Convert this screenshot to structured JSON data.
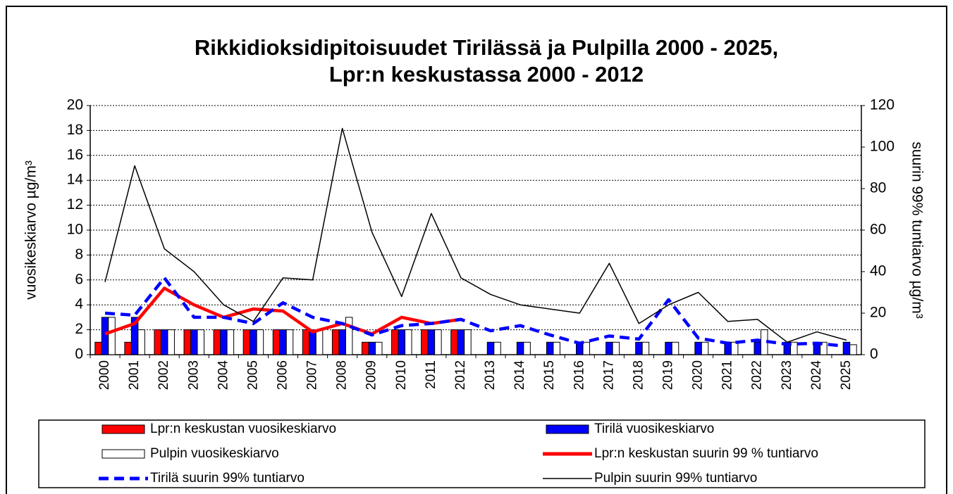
{
  "chart_data": {
    "type": "combo",
    "title": [
      "Rikkidioksidipitoisuudet Tirilässä ja Pulpilla 2000 - 2025,",
      "Lpr:n keskustassa 2000 - 2012"
    ],
    "y_label": "vuosikeskiarvo µg/m³",
    "y2_label": "suurin 99% tuntiarvo µg/m³",
    "categories": [
      "2000",
      "2001",
      "2002",
      "2003",
      "2004",
      "2005",
      "2006",
      "2007",
      "2008",
      "2009",
      "2010",
      "2011",
      "2012",
      "2013",
      "2014",
      "2015",
      "2016",
      "2017",
      "2018",
      "2019",
      "2020",
      "2021",
      "2022",
      "2023",
      "2024",
      "2025"
    ],
    "ylim": [
      0,
      20
    ],
    "yticks": [
      0,
      2,
      4,
      6,
      8,
      10,
      12,
      14,
      16,
      18,
      20
    ],
    "y2lim": [
      0,
      120
    ],
    "y2ticks": [
      0,
      20,
      40,
      60,
      80,
      100,
      120
    ],
    "grid": true,
    "series": [
      {
        "name": "Lpr:n keskustan vuosikeskiarvo",
        "type": "bar",
        "color": "#ff0000",
        "values": [
          1,
          1,
          2,
          2,
          2,
          2,
          2,
          2,
          2,
          1,
          2,
          2,
          2,
          null,
          null,
          null,
          null,
          null,
          null,
          null,
          null,
          null,
          null,
          null,
          null,
          null
        ]
      },
      {
        "name": "Tirilä vuosikeskiarvo",
        "type": "bar",
        "color": "#0000ff",
        "values": [
          3,
          3,
          2,
          2,
          2,
          2,
          2,
          2,
          2,
          1,
          2,
          2,
          2,
          1,
          1,
          1,
          1,
          1,
          1,
          1,
          1,
          1,
          1,
          1,
          1,
          1
        ]
      },
      {
        "name": "Pulpin vuosikeskiarvo",
        "type": "bar",
        "color": "#ffffff",
        "values": [
          3,
          2,
          2,
          2,
          2,
          2,
          2,
          2,
          3,
          1,
          2,
          2,
          2,
          1,
          1,
          1,
          1,
          1,
          1,
          1,
          1,
          1,
          2,
          1,
          1,
          0.8
        ]
      },
      {
        "name": "Lpr:n keskustan suurin 99 % tuntiarvo",
        "type": "line",
        "axis": "y2",
        "color": "#ff0000",
        "values": [
          10,
          15,
          32,
          24,
          18,
          22,
          21,
          11,
          15,
          10,
          18,
          15,
          17,
          null,
          null,
          null,
          null,
          null,
          null,
          null,
          null,
          null,
          null,
          null,
          null,
          null
        ]
      },
      {
        "name": "Tirilä suurin 99% tuntiarvo",
        "type": "line",
        "axis": "y2",
        "color": "#0000ff",
        "dashed": true,
        "values": [
          20,
          19,
          37,
          18,
          18,
          15,
          25,
          18,
          15,
          9.5,
          14,
          15,
          17,
          11.5,
          14,
          9.5,
          5.5,
          9,
          7.5,
          26.5,
          8,
          5.5,
          7,
          5,
          5.5,
          4
        ]
      },
      {
        "name": "Pulpin suurin 99% tuntiarvo",
        "type": "line",
        "axis": "y2",
        "color": "#000000",
        "values": [
          35,
          91,
          51,
          40,
          24,
          16,
          37,
          36,
          109,
          59,
          28,
          68,
          37,
          29,
          24,
          22,
          20,
          44,
          15,
          24,
          30,
          16,
          17,
          6,
          11,
          7
        ]
      }
    ]
  }
}
